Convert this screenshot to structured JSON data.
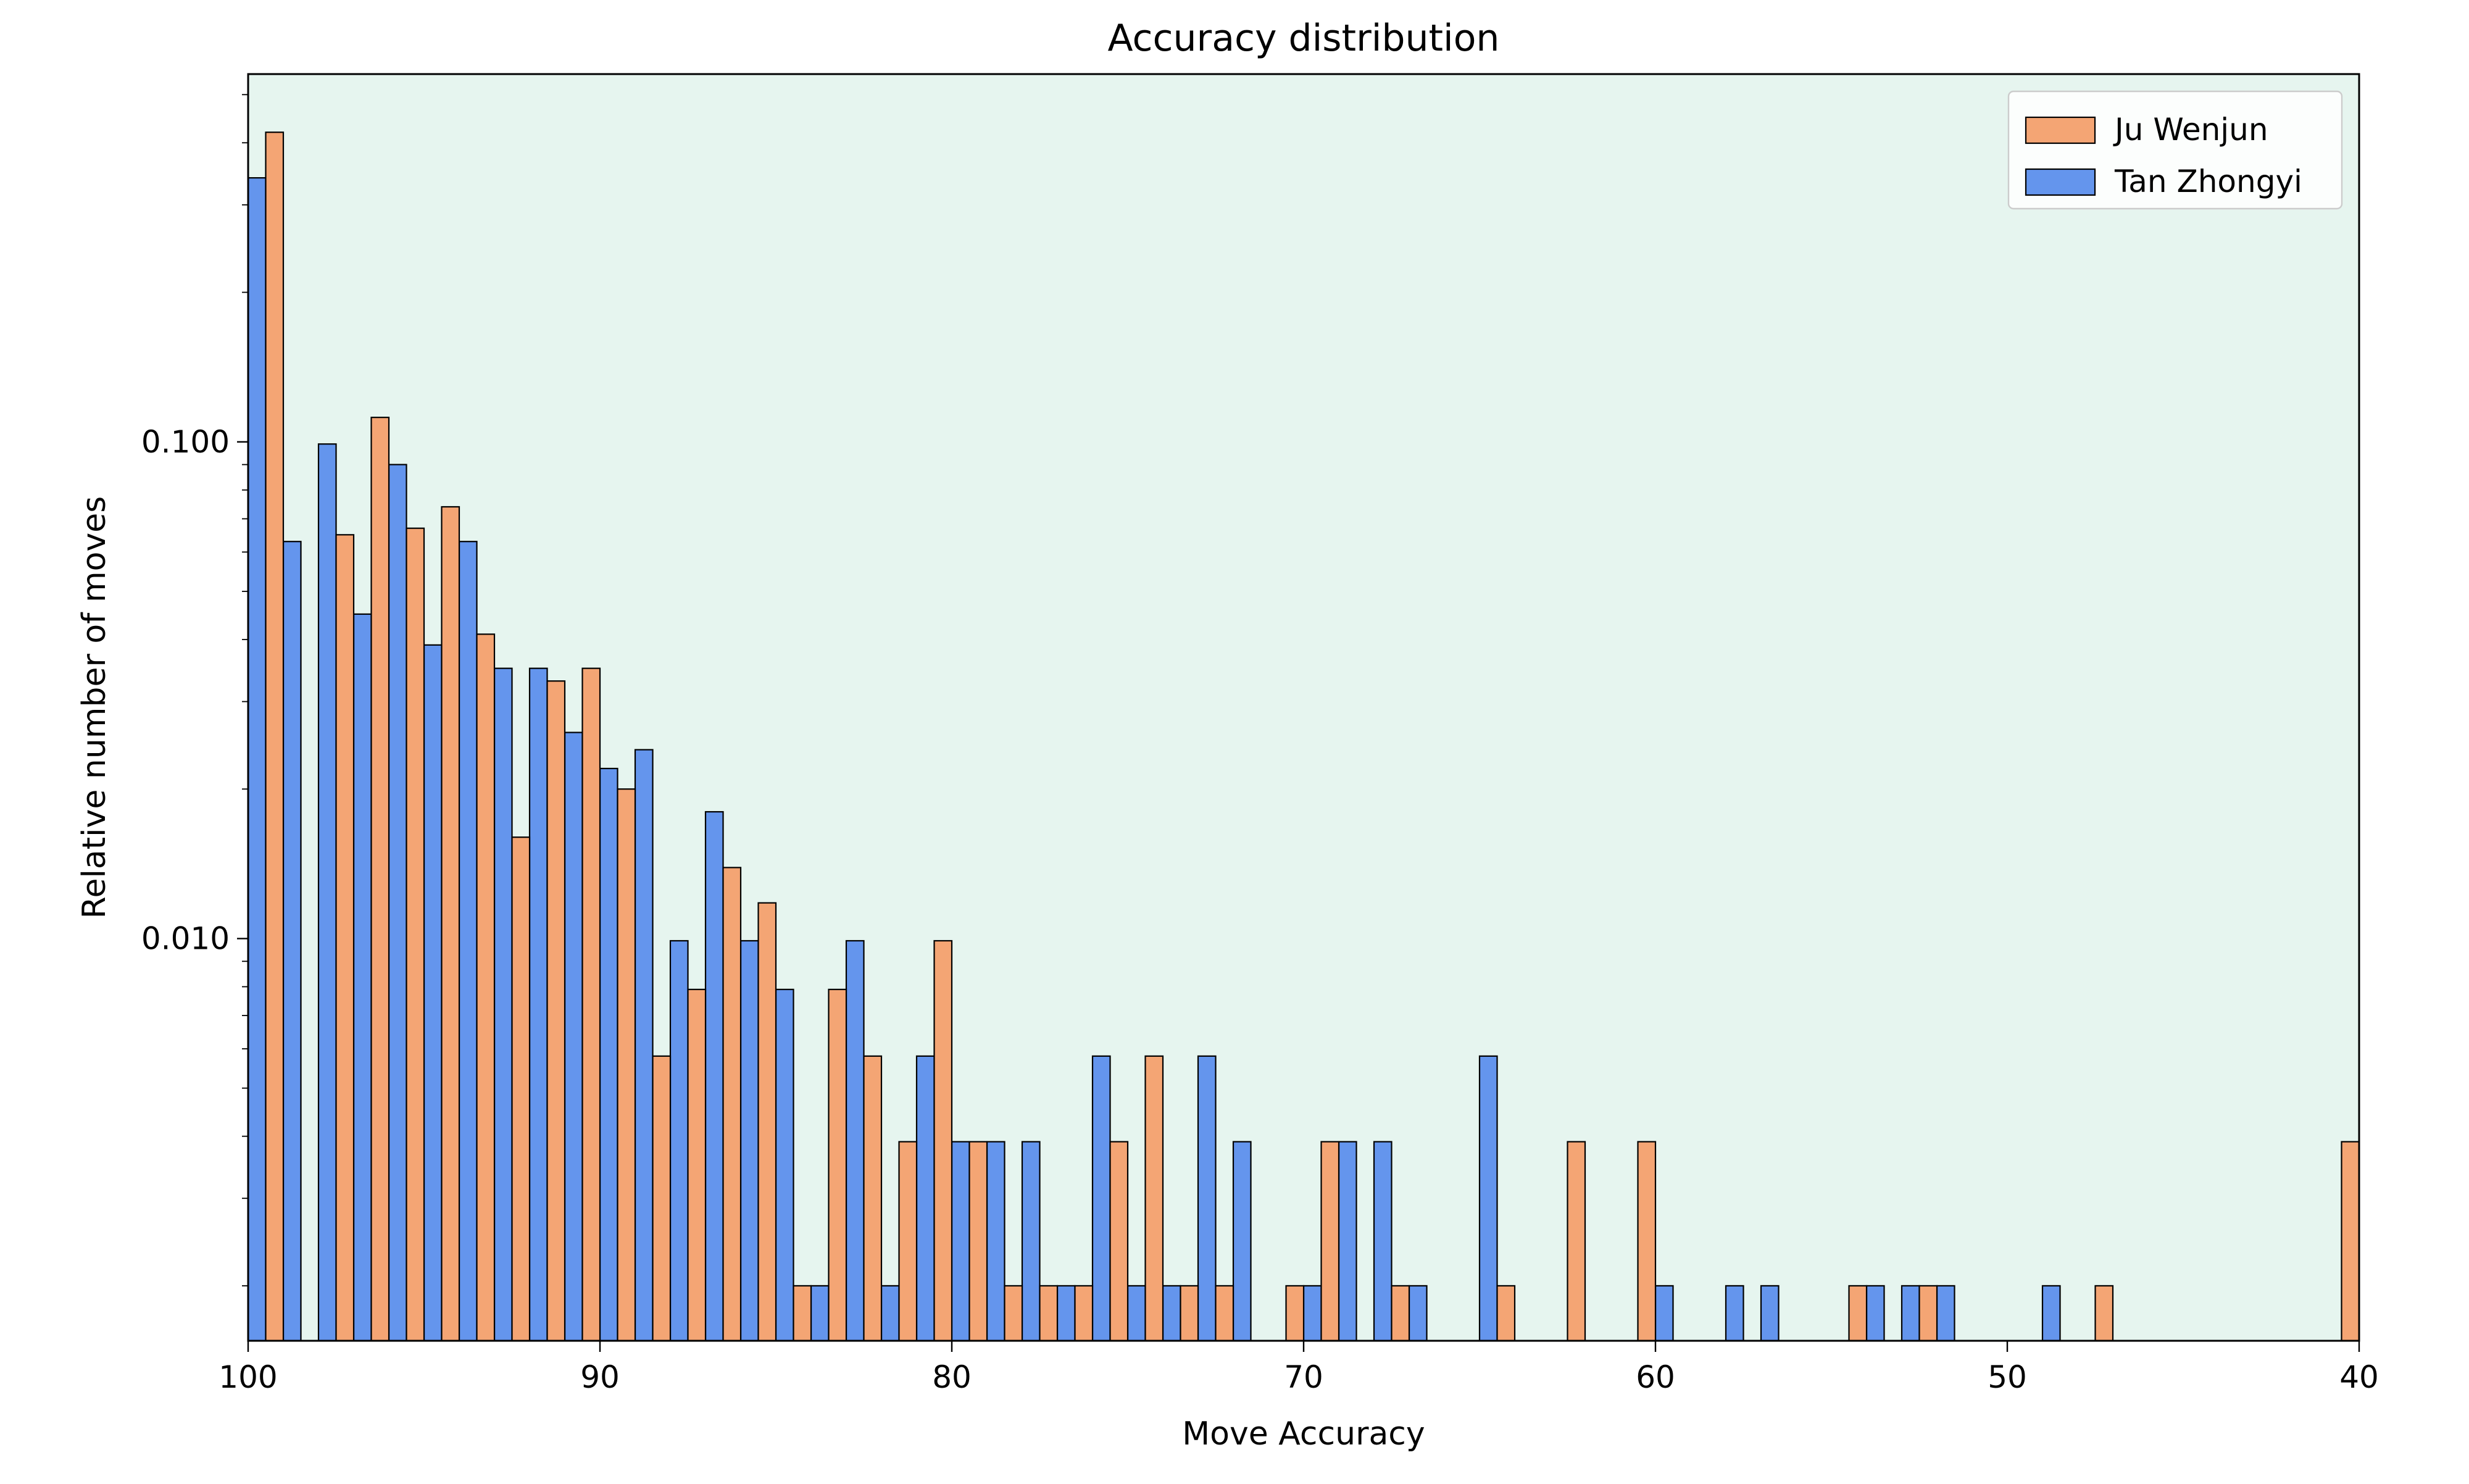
{
  "chart_data": {
    "type": "bar",
    "title": "Accuracy distribution",
    "xlabel": "Move Accuracy",
    "ylabel": "Relative number of moves",
    "xlim": [
      100,
      40
    ],
    "x_reversed": true,
    "yscale": "log",
    "ylim": [
      0.00155,
      0.55
    ],
    "x_ticks": [
      {
        "value": 100,
        "label": "100"
      },
      {
        "value": 90,
        "label": "90"
      },
      {
        "value": 80,
        "label": "80"
      },
      {
        "value": 70,
        "label": "70"
      },
      {
        "value": 60,
        "label": "60"
      },
      {
        "value": 50,
        "label": "50"
      },
      {
        "value": 40,
        "label": "40"
      }
    ],
    "y_ticks": [
      {
        "value": 0.1,
        "label": "0.100"
      },
      {
        "value": 0.01,
        "label": "0.010"
      }
    ],
    "bin_width": 1,
    "grid": false,
    "legend_position": "top-right",
    "background_color": "#e6f5ef",
    "series": [
      {
        "name": "Ju Wenjun",
        "color": "#f4a574",
        "points": [
          [
            100,
            0.42
          ],
          [
            98,
            0.065
          ],
          [
            97,
            0.112
          ],
          [
            96,
            0.067
          ],
          [
            95,
            0.074
          ],
          [
            94,
            0.041
          ],
          [
            93,
            0.016
          ],
          [
            92,
            0.033
          ],
          [
            91,
            0.035
          ],
          [
            90,
            0.02
          ],
          [
            89,
            0.0058
          ],
          [
            88,
            0.0079
          ],
          [
            87,
            0.0139
          ],
          [
            86,
            0.0118
          ],
          [
            85,
            0.002
          ],
          [
            84,
            0.0079
          ],
          [
            83,
            0.0058
          ],
          [
            82,
            0.0039
          ],
          [
            81,
            0.0099
          ],
          [
            80,
            0.0039
          ],
          [
            79,
            0.002
          ],
          [
            78,
            0.002
          ],
          [
            77,
            0.002
          ],
          [
            76,
            0.0039
          ],
          [
            75,
            0.0058
          ],
          [
            74,
            0.002
          ],
          [
            73,
            0.002
          ],
          [
            71,
            0.002
          ],
          [
            70,
            0.0039
          ],
          [
            68,
            0.002
          ],
          [
            65,
            0.002
          ],
          [
            63,
            0.0039
          ],
          [
            61,
            0.0039
          ],
          [
            55,
            0.002
          ],
          [
            53,
            0.002
          ],
          [
            48,
            0.002
          ],
          [
            40,
            0.0039
          ]
        ]
      },
      {
        "name": "Tan Zhongyi",
        "color": "#6495ed",
        "points": [
          [
            100,
            0.34
          ],
          [
            99,
            0.063
          ],
          [
            98,
            0.099
          ],
          [
            97,
            0.045
          ],
          [
            96,
            0.09
          ],
          [
            95,
            0.039
          ],
          [
            94,
            0.063
          ],
          [
            93,
            0.035
          ],
          [
            92,
            0.035
          ],
          [
            91,
            0.026
          ],
          [
            90,
            0.022
          ],
          [
            89,
            0.024
          ],
          [
            88,
            0.0099
          ],
          [
            87,
            0.018
          ],
          [
            86,
            0.0099
          ],
          [
            85,
            0.0079
          ],
          [
            84,
            0.002
          ],
          [
            83,
            0.0099
          ],
          [
            82,
            0.002
          ],
          [
            81,
            0.0058
          ],
          [
            80,
            0.0039
          ],
          [
            79,
            0.0039
          ],
          [
            78,
            0.0039
          ],
          [
            77,
            0.002
          ],
          [
            76,
            0.0058
          ],
          [
            75,
            0.002
          ],
          [
            74,
            0.002
          ],
          [
            73,
            0.0058
          ],
          [
            72,
            0.0039
          ],
          [
            70,
            0.002
          ],
          [
            69,
            0.0039
          ],
          [
            68,
            0.0039
          ],
          [
            67,
            0.002
          ],
          [
            65,
            0.0058
          ],
          [
            60,
            0.002
          ],
          [
            58,
            0.002
          ],
          [
            57,
            0.002
          ],
          [
            54,
            0.002
          ],
          [
            53,
            0.002
          ],
          [
            52,
            0.002
          ],
          [
            49,
            0.002
          ]
        ]
      }
    ]
  }
}
